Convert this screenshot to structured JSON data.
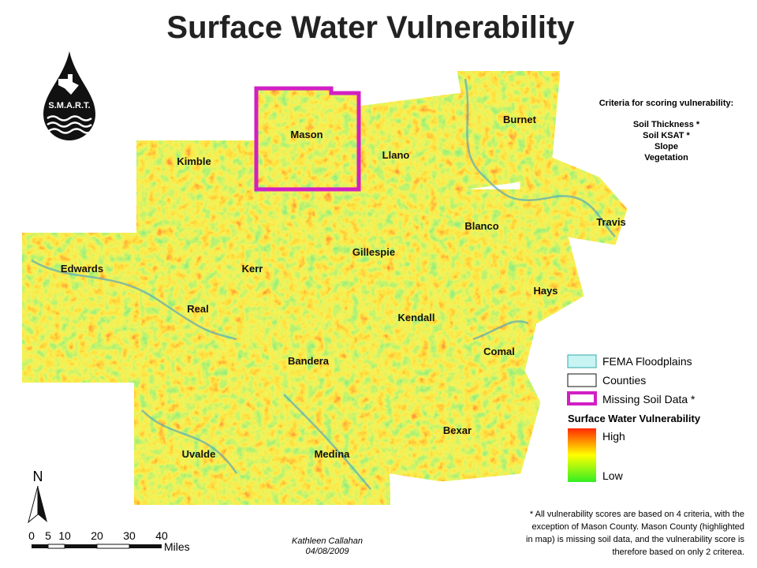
{
  "title": "Surface Water Vulnerability",
  "logo": "S.M.A.R.T.",
  "counties": [
    "Mason",
    "Llano",
    "Burnet",
    "Kimble",
    "Travis",
    "Blanco",
    "Gillespie",
    "Edwards",
    "Kerr",
    "Hays",
    "Real",
    "Kendall",
    "Comal",
    "Bandera",
    "Bexar",
    "Uvalde",
    "Medina"
  ],
  "criteria": {
    "heading": "Criteria for scoring vulnerability:",
    "items": [
      "Soil Thickness *",
      "Soil KSAT *",
      "Slope",
      "Vegetation"
    ]
  },
  "legend": {
    "items": [
      "FEMA Floodplains",
      "Counties",
      "Missing Soil Data *"
    ],
    "title": "Surface Water Vulnerability",
    "high": "High",
    "low": "Low"
  },
  "north": "N",
  "scale": {
    "ticks": [
      0,
      5,
      10,
      20,
      30,
      40
    ],
    "unit": "Miles"
  },
  "author": "Kathleen Callahan",
  "date": "04/08/2009",
  "note": [
    "* All vulnerability scores are based on 4 criteria, with the",
    "exception of Mason County. Mason County (highlighted",
    "in map) is missing soil data, and the vulnerability score is",
    "therefore based on only 2 criterea."
  ]
}
